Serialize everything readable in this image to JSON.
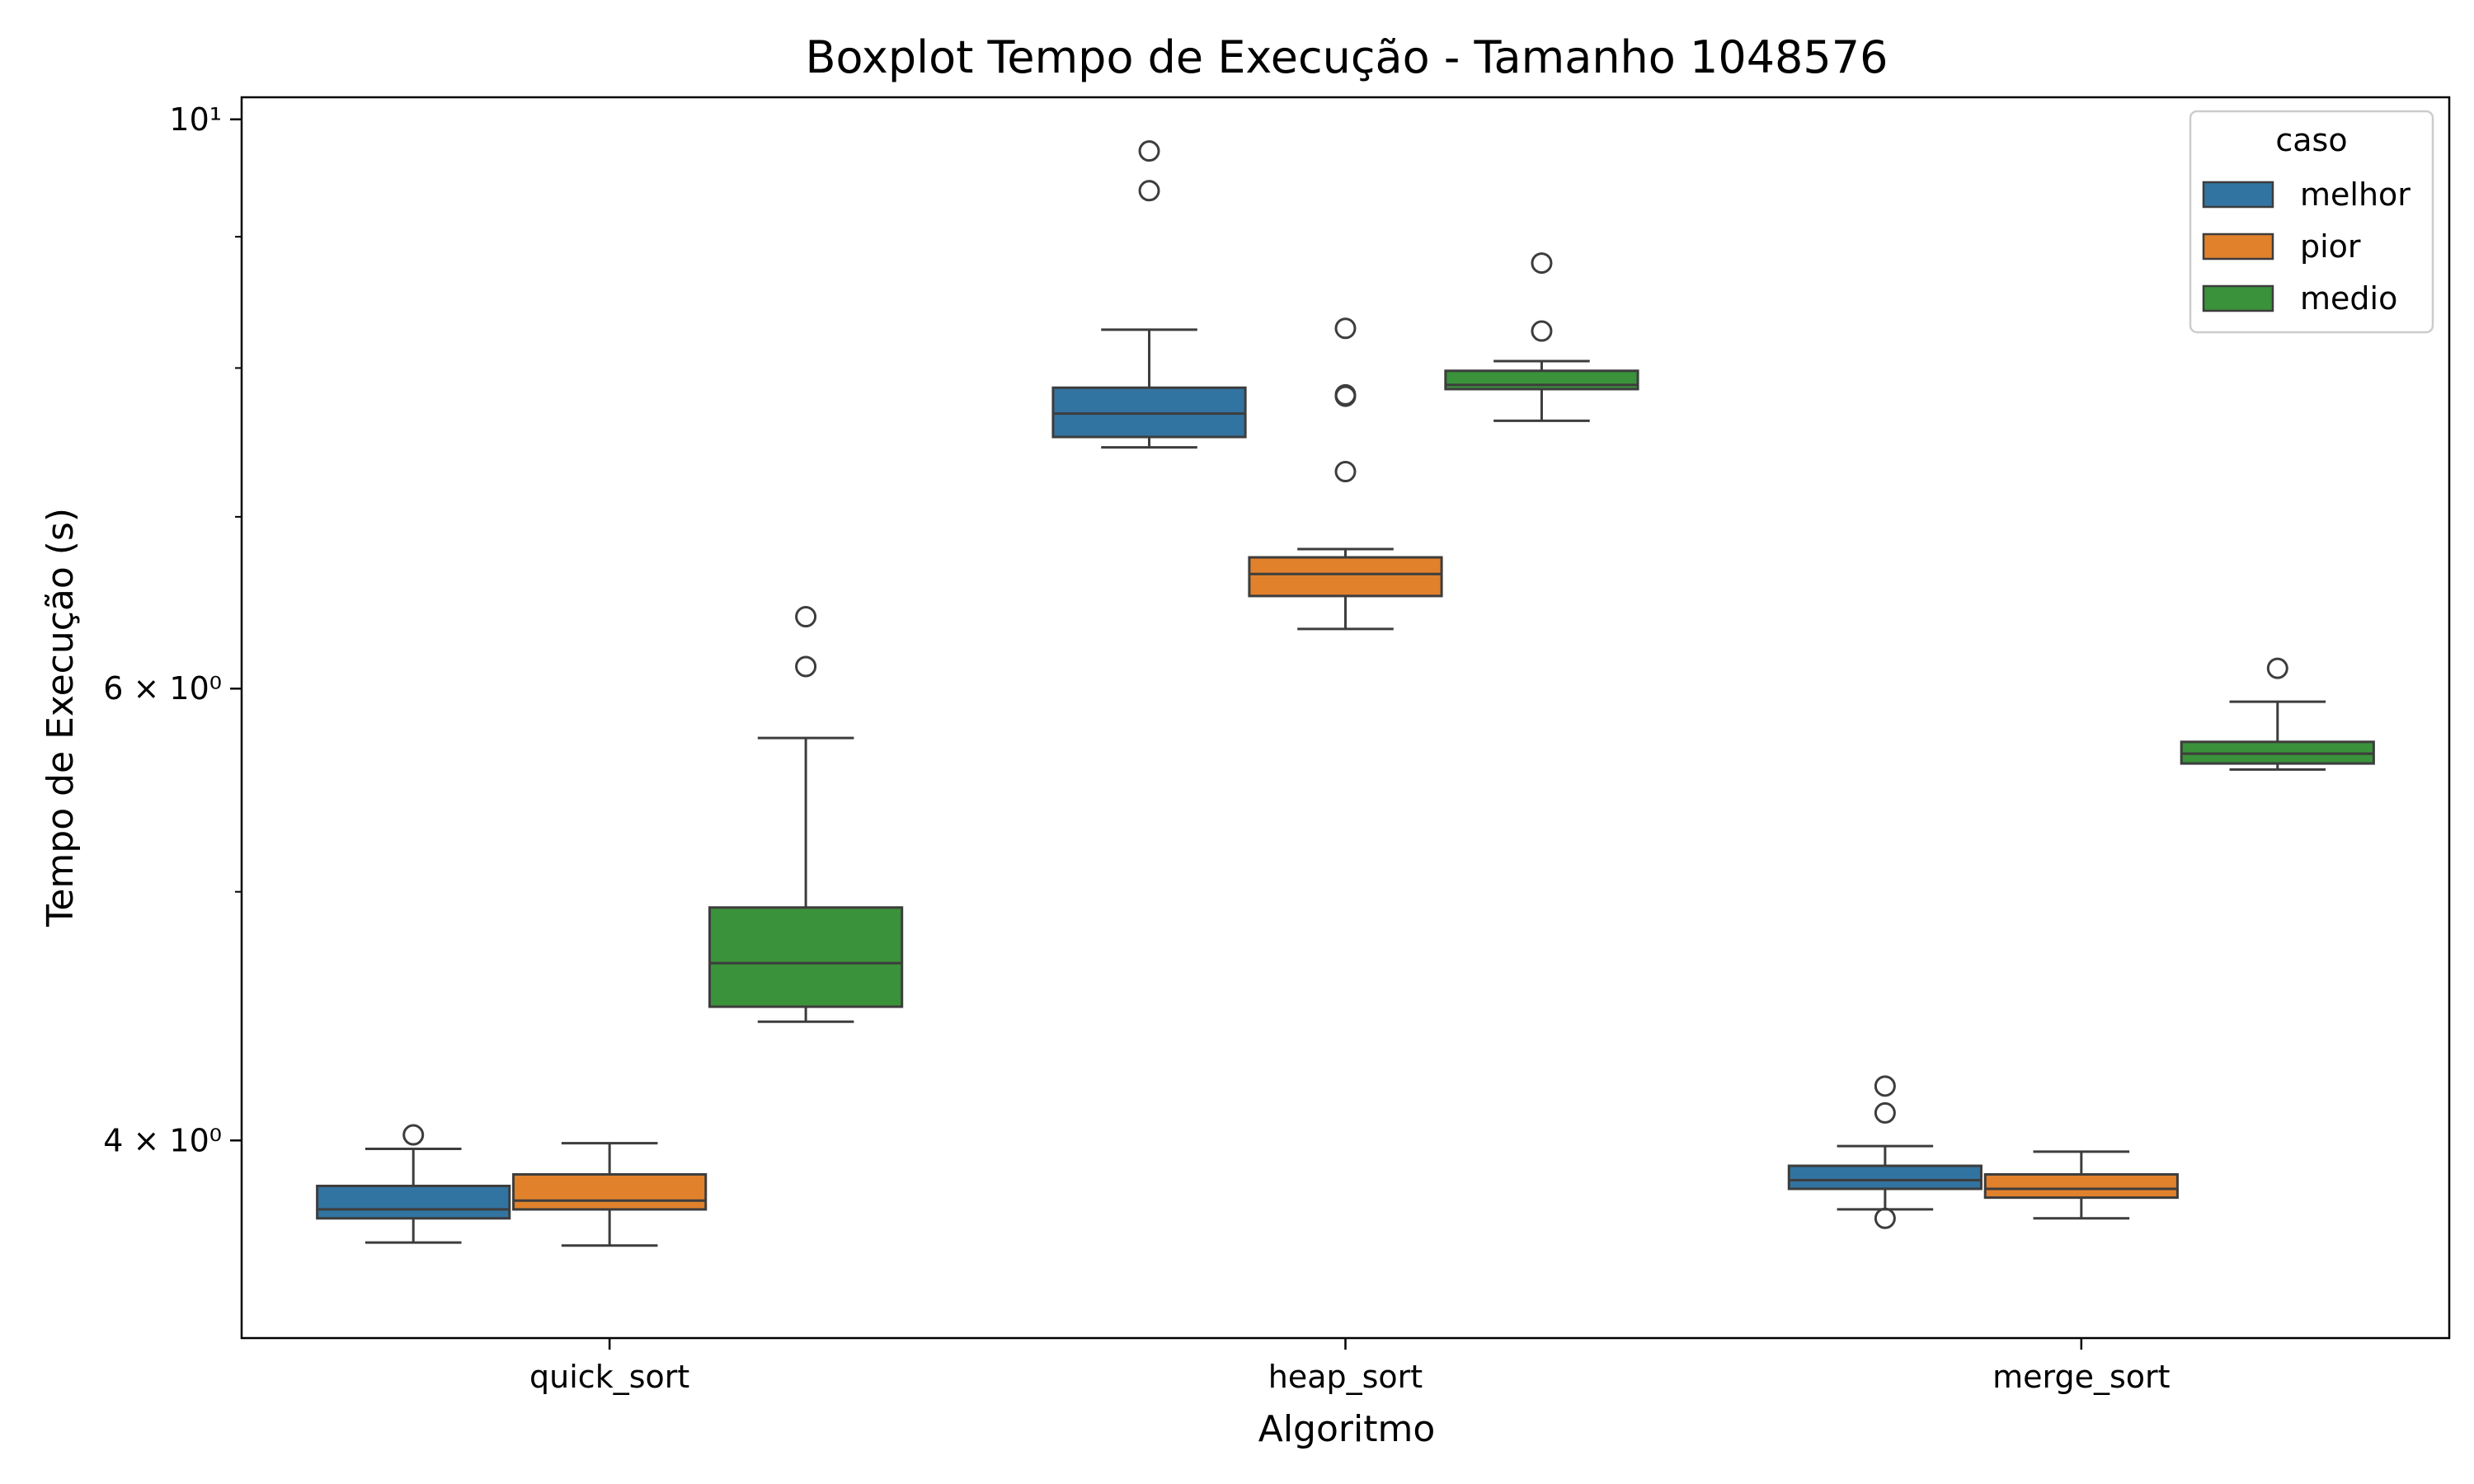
{
  "chart_data": {
    "type": "boxplot",
    "title": "Boxplot Tempo de Execução - Tamanho 1048576",
    "xlabel": "Algoritmo",
    "ylabel": "Tempo de Execução (s)",
    "yscale": "log",
    "ylim": [
      3.35,
      10.2
    ],
    "categories": [
      "quick_sort",
      "heap_sort",
      "merge_sort"
    ],
    "yticks": [
      {
        "value": 4,
        "label": "4 × 10⁰"
      },
      {
        "value": 6,
        "label": "6 × 10⁰"
      },
      {
        "value": 10,
        "label": "10¹"
      }
    ],
    "minor_yticks": [
      5,
      7,
      8,
      9
    ],
    "legend": {
      "title": "caso",
      "position": "top-right"
    },
    "series": [
      {
        "name": "melhor",
        "color": "#3274a1",
        "boxes": [
          {
            "whislo": 3.65,
            "q1": 3.73,
            "med": 3.76,
            "q3": 3.84,
            "whishi": 3.97,
            "fliers": [
              4.02
            ]
          },
          {
            "whislo": 7.45,
            "q1": 7.52,
            "med": 7.68,
            "q3": 7.86,
            "whishi": 8.28,
            "fliers": [
              9.38,
              9.72
            ]
          },
          {
            "whislo": 3.76,
            "q1": 3.83,
            "med": 3.86,
            "q3": 3.91,
            "whishi": 3.98,
            "fliers": [
              3.73,
              4.1,
              4.2
            ]
          }
        ]
      },
      {
        "name": "pior",
        "color": "#e1812c",
        "boxes": [
          {
            "whislo": 3.64,
            "q1": 3.76,
            "med": 3.79,
            "q3": 3.88,
            "whishi": 3.99,
            "fliers": []
          },
          {
            "whislo": 6.33,
            "q1": 6.52,
            "med": 6.65,
            "q3": 6.75,
            "whishi": 6.8,
            "fliers": [
              7.29,
              7.8,
              7.81,
              8.29
            ]
          },
          {
            "whislo": 3.73,
            "q1": 3.8,
            "med": 3.83,
            "q3": 3.88,
            "whishi": 3.96,
            "fliers": []
          }
        ]
      },
      {
        "name": "medio",
        "color": "#3a923a",
        "boxes": [
          {
            "whislo": 4.45,
            "q1": 4.51,
            "med": 4.69,
            "q3": 4.93,
            "whishi": 5.74,
            "fliers": [
              6.12,
              6.4
            ]
          },
          {
            "whislo": 7.63,
            "q1": 7.85,
            "med": 7.88,
            "q3": 7.98,
            "whishi": 8.05,
            "fliers": [
              8.27,
              8.79
            ]
          },
          {
            "whislo": 5.58,
            "q1": 5.61,
            "med": 5.66,
            "q3": 5.72,
            "whishi": 5.93,
            "fliers": [
              6.11
            ]
          }
        ]
      }
    ]
  }
}
